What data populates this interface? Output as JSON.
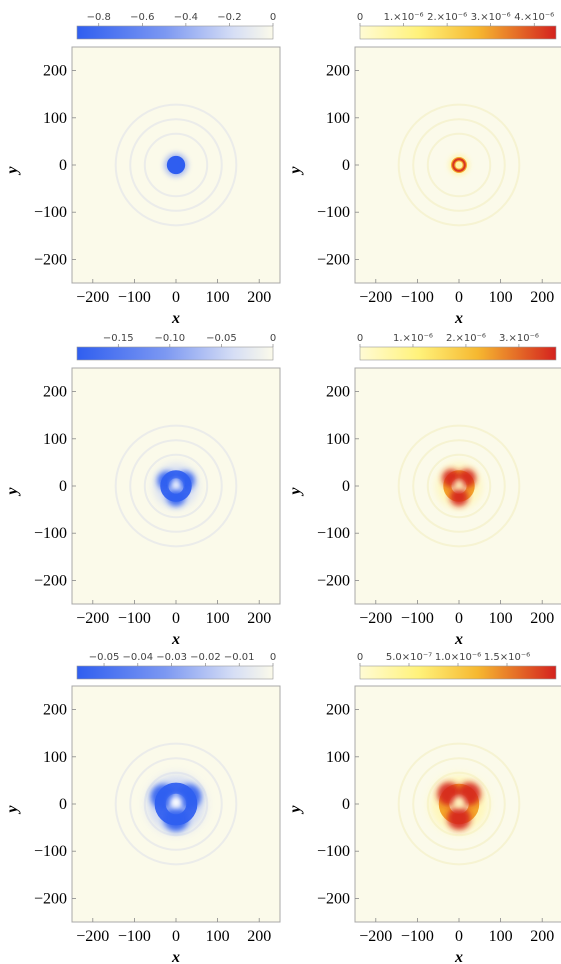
{
  "chart_data": [
    {
      "type": "heatmap",
      "colormap": "blue",
      "x_range": [
        -250,
        250
      ],
      "y_range": [
        -250,
        250
      ],
      "x_ticks": [
        "−200",
        "−100",
        "0",
        "100",
        "200"
      ],
      "y_ticks": [
        "200",
        "100",
        "0",
        "−100",
        "−200"
      ],
      "xlabel": "x",
      "ylabel": "y",
      "colorbar": {
        "min": -0.9,
        "max": 0,
        "ticks": [
          {
            "v": -0.8,
            "t": "−0.8"
          },
          {
            "v": -0.6,
            "t": "−0.6"
          },
          {
            "v": -0.4,
            "t": "−0.4"
          },
          {
            "v": -0.2,
            "t": "−0.2"
          },
          {
            "v": 0,
            "t": "0"
          }
        ]
      },
      "features": [
        {
          "kind": "disk",
          "radius": 22,
          "peak_value": -0.9
        }
      ]
    },
    {
      "type": "heatmap",
      "colormap": "warm",
      "x_range": [
        -250,
        250
      ],
      "y_range": [
        -250,
        250
      ],
      "x_ticks": [
        "−200",
        "−100",
        "0",
        "100",
        "200"
      ],
      "y_ticks": [
        "200",
        "100",
        "0",
        "−100",
        "−200"
      ],
      "xlabel": "x",
      "ylabel": "y",
      "colorbar": {
        "min": 0,
        "max": 4.5e-06,
        "ticks": [
          {
            "v": 0,
            "t": "0"
          },
          {
            "v": 1e-06,
            "t": "1.×10⁻⁶"
          },
          {
            "v": 2e-06,
            "t": "2.×10⁻⁶"
          },
          {
            "v": 3e-06,
            "t": "3.×10⁻⁶"
          },
          {
            "v": 4e-06,
            "t": "4.×10⁻⁶"
          }
        ]
      },
      "features": [
        {
          "kind": "ring",
          "radius": 14,
          "peak_value": 4.5e-06
        }
      ]
    },
    {
      "type": "heatmap",
      "colormap": "blue",
      "x_range": [
        -250,
        250
      ],
      "y_range": [
        -250,
        250
      ],
      "x_ticks": [
        "−200",
        "−100",
        "0",
        "100",
        "200"
      ],
      "y_ticks": [
        "200",
        "100",
        "0",
        "−100",
        "−200"
      ],
      "xlabel": "x",
      "ylabel": "y",
      "colorbar": {
        "min": -0.19,
        "max": 0,
        "ticks": [
          {
            "v": -0.15,
            "t": "−0.15"
          },
          {
            "v": -0.1,
            "t": "−0.10"
          },
          {
            "v": -0.05,
            "t": "−0.05"
          },
          {
            "v": 0,
            "t": "0"
          }
        ]
      },
      "features": [
        {
          "kind": "trefoil",
          "radius": 28,
          "peak_value": -0.19
        }
      ]
    },
    {
      "type": "heatmap",
      "colormap": "warm",
      "x_range": [
        -250,
        250
      ],
      "y_range": [
        -250,
        250
      ],
      "x_ticks": [
        "−200",
        "−100",
        "0",
        "100",
        "200"
      ],
      "y_ticks": [
        "200",
        "100",
        "0",
        "−100",
        "−200"
      ],
      "xlabel": "x",
      "ylabel": "y",
      "colorbar": {
        "min": 0,
        "max": 3.7e-06,
        "ticks": [
          {
            "v": 0,
            "t": "0"
          },
          {
            "v": 1e-06,
            "t": "1.×10⁻⁶"
          },
          {
            "v": 2e-06,
            "t": "2.×10⁻⁶"
          },
          {
            "v": 3e-06,
            "t": "3.×10⁻⁶"
          }
        ]
      },
      "features": [
        {
          "kind": "trefoil",
          "radius": 28,
          "peak_value": 3.7e-06
        }
      ]
    },
    {
      "type": "heatmap",
      "colormap": "blue",
      "x_range": [
        -250,
        250
      ],
      "y_range": [
        -250,
        250
      ],
      "x_ticks": [
        "−200",
        "−100",
        "0",
        "100",
        "200"
      ],
      "y_ticks": [
        "200",
        "100",
        "0",
        "−100",
        "−200"
      ],
      "xlabel": "x",
      "ylabel": "y",
      "colorbar": {
        "min": -0.058,
        "max": 0,
        "ticks": [
          {
            "v": -0.05,
            "t": "−0.05"
          },
          {
            "v": -0.04,
            "t": "−0.04"
          },
          {
            "v": -0.03,
            "t": "−0.03"
          },
          {
            "v": -0.02,
            "t": "−0.02"
          },
          {
            "v": -0.01,
            "t": "−0.01"
          },
          {
            "v": 0,
            "t": "0"
          }
        ]
      },
      "features": [
        {
          "kind": "trefoil",
          "radius": 38,
          "peak_value": -0.058
        }
      ]
    },
    {
      "type": "heatmap",
      "colormap": "warm",
      "x_range": [
        -250,
        250
      ],
      "y_range": [
        -250,
        250
      ],
      "x_ticks": [
        "−200",
        "−100",
        "0",
        "100",
        "200"
      ],
      "y_ticks": [
        "200",
        "100",
        "0",
        "−100",
        "−200"
      ],
      "xlabel": "x",
      "ylabel": "y",
      "colorbar": {
        "min": 0,
        "max": 2e-06,
        "ticks": [
          {
            "v": 0,
            "t": "0"
          },
          {
            "v": 5e-07,
            "t": "5.0×10⁻⁷"
          },
          {
            "v": 1e-06,
            "t": "1.0×10⁻⁶"
          },
          {
            "v": 1.5e-06,
            "t": "1.5×10⁻⁶"
          }
        ]
      },
      "features": [
        {
          "kind": "trefoil",
          "radius": 36,
          "peak_value": 2e-06
        }
      ]
    }
  ],
  "colors": {
    "plot_background": "#fbfaea",
    "frame": "#a8a8a8",
    "blue_deep": "#2f5ef0",
    "warm_low": "#fffbc8",
    "warm_mid": "#f4a52c",
    "warm_high": "#d4221e"
  }
}
